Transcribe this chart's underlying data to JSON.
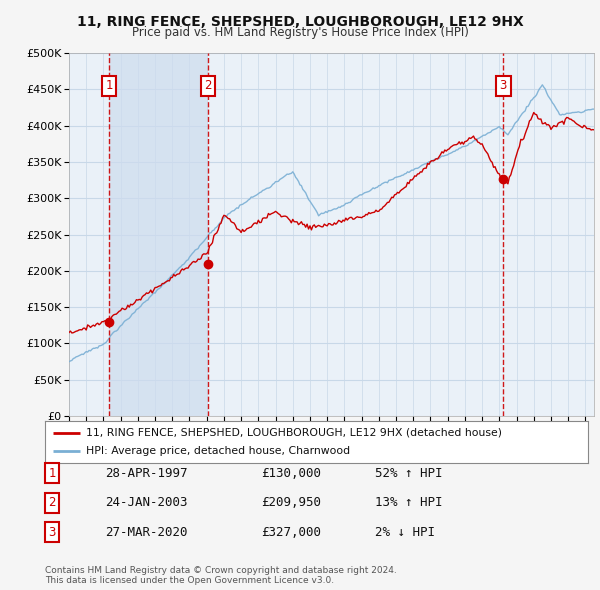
{
  "title": "11, RING FENCE, SHEPSHED, LOUGHBOROUGH, LE12 9HX",
  "subtitle": "Price paid vs. HM Land Registry's House Price Index (HPI)",
  "ylim": [
    0,
    500000
  ],
  "xlim_start": 1995.0,
  "xlim_end": 2025.5,
  "legend_line1": "11, RING FENCE, SHEPSHED, LOUGHBOROUGH, LE12 9HX (detached house)",
  "legend_line2": "HPI: Average price, detached house, Charnwood",
  "transactions": [
    {
      "num": 1,
      "date": "28-APR-1997",
      "price": 130000,
      "pct": "52%",
      "dir": "↑",
      "x": 1997.32
    },
    {
      "num": 2,
      "date": "24-JAN-2003",
      "price": 209950,
      "pct": "13%",
      "dir": "↑",
      "x": 2003.07
    },
    {
      "num": 3,
      "date": "27-MAR-2020",
      "price": 327000,
      "pct": "2%",
      "dir": "↓",
      "x": 2020.23
    }
  ],
  "footer": "Contains HM Land Registry data © Crown copyright and database right 2024.\nThis data is licensed under the Open Government Licence v3.0.",
  "line_color_red": "#cc0000",
  "line_color_blue": "#7aafd4",
  "bg_color": "#dce8f5",
  "bg_color2": "#eaf1f8",
  "grid_color": "#c8d8e8",
  "shade_color": "#cddcee",
  "label_box_color": "#cc0000",
  "dashed_line_color": "#cc0000",
  "fig_bg": "#f5f5f5"
}
